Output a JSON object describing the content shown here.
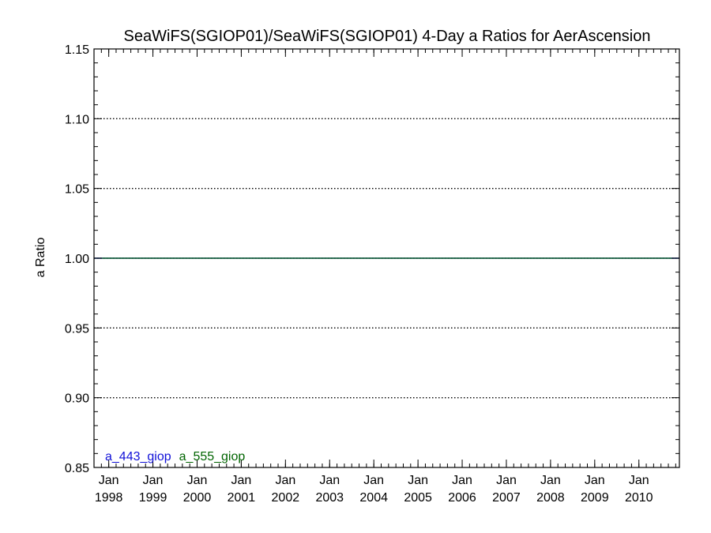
{
  "chart_data": {
    "type": "line",
    "title": "SeaWiFS(SGIOP01)/SeaWiFS(SGIOP01) 4-Day a Ratios for AerAscension",
    "xlabel": "",
    "ylabel": "a Ratio",
    "xlim": [
      "1997-09",
      "2010-12"
    ],
    "ylim": [
      0.85,
      1.15
    ],
    "yticks": [
      "0.85",
      "0.90",
      "0.95",
      "1.00",
      "1.05",
      "1.10",
      "1.15"
    ],
    "xticks": [
      {
        "month": "Jan",
        "year": "1998",
        "date": "1998-01"
      },
      {
        "month": "Jan",
        "year": "1999",
        "date": "1999-01"
      },
      {
        "month": "Jan",
        "year": "2000",
        "date": "2000-01"
      },
      {
        "month": "Jan",
        "year": "2001",
        "date": "2001-01"
      },
      {
        "month": "Jan",
        "year": "2002",
        "date": "2002-01"
      },
      {
        "month": "Jan",
        "year": "2003",
        "date": "2003-01"
      },
      {
        "month": "Jan",
        "year": "2004",
        "date": "2004-01"
      },
      {
        "month": "Jan",
        "year": "2005",
        "date": "2005-01"
      },
      {
        "month": "Jan",
        "year": "2006",
        "date": "2006-01"
      },
      {
        "month": "Jan",
        "year": "2007",
        "date": "2007-01"
      },
      {
        "month": "Jan",
        "year": "2008",
        "date": "2008-01"
      },
      {
        "month": "Jan",
        "year": "2009",
        "date": "2009-01"
      },
      {
        "month": "Jan",
        "year": "2010",
        "date": "2010-01"
      }
    ],
    "grid": "dotted horizontal at labeled y ticks",
    "legend_position": "bottom-left",
    "series": [
      {
        "name": "a_443_giop",
        "color": "#1010d8",
        "x": [
          "1997-09",
          "2010-12"
        ],
        "values": [
          1.0,
          1.0
        ]
      },
      {
        "name": "a_555_giop",
        "color": "#006400",
        "x": [
          "1997-09",
          "2010-12"
        ],
        "values": [
          1.0,
          1.0
        ]
      }
    ]
  }
}
